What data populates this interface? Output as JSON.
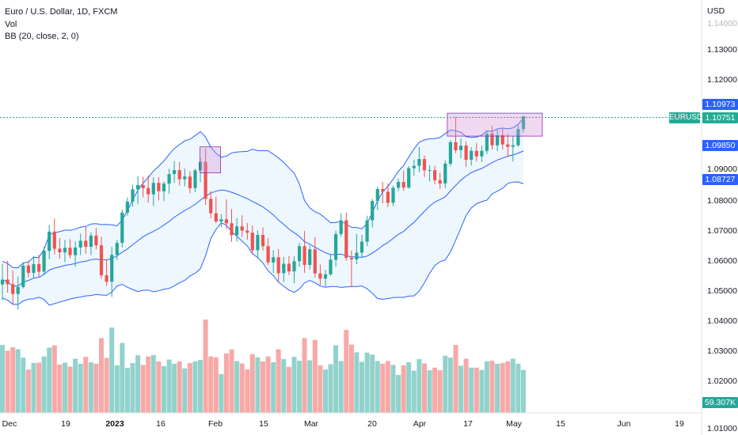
{
  "legend": {
    "line1": "Euro / U.S. Dollar, 1D, FXCM",
    "line2": "Vol",
    "line3": "BB (20, close, 2, 0)"
  },
  "price_axis": {
    "currency": "USD",
    "labels": [
      "1.14000",
      "1.13000",
      "1.12000",
      "1.09000",
      "1.08000",
      "1.07000",
      "1.06000",
      "1.05000",
      "1.04000",
      "1.03000",
      "1.02000",
      "1.01000"
    ]
  },
  "price_tags": {
    "bb_upper": "1.10973",
    "symbol": "EURUSD",
    "last_price": "1.10751",
    "bb_basis": "1.09850",
    "bb_lower": "1.08727",
    "volume": "59.307K"
  },
  "time_axis": {
    "labels": [
      "Dec",
      "19",
      "2023",
      "16",
      "Feb",
      "15",
      "Mar",
      "20",
      "Apr",
      "17",
      "May",
      "15",
      "Jun",
      "19"
    ]
  },
  "colors": {
    "up": "#26a69a",
    "down": "#ef5350",
    "bb_line": "#2962ff",
    "bb_fill": "#e3f2fd",
    "highlight": "#ce93d8"
  },
  "chart_data": {
    "type": "candlestick",
    "title": "Euro / U.S. Dollar, 1D, FXCM",
    "ylim": [
      1.005,
      1.145
    ],
    "candles": [
      [
        1.0525,
        1.0592,
        1.0473,
        1.0541
      ],
      [
        1.0541,
        1.0602,
        1.0498,
        1.0526
      ],
      [
        1.0526,
        1.0571,
        1.0458,
        1.0494
      ],
      [
        1.0494,
        1.0551,
        1.0443,
        1.0517
      ],
      [
        1.0517,
        1.0598,
        1.0512,
        1.0587
      ],
      [
        1.0587,
        1.0603,
        1.0548,
        1.0563
      ],
      [
        1.0563,
        1.0618,
        1.0546,
        1.0592
      ],
      [
        1.0592,
        1.0622,
        1.0549,
        1.0567
      ],
      [
        1.0567,
        1.0648,
        1.0559,
        1.0635
      ],
      [
        1.0635,
        1.072,
        1.0608,
        1.0698
      ],
      [
        1.0698,
        1.0741,
        1.0623,
        1.0642
      ],
      [
        1.0642,
        1.0677,
        1.0609,
        1.063
      ],
      [
        1.063,
        1.0671,
        1.0598,
        1.0645
      ],
      [
        1.0645,
        1.0673,
        1.061,
        1.0621
      ],
      [
        1.0621,
        1.0666,
        1.0583,
        1.0646
      ],
      [
        1.0646,
        1.0691,
        1.0621,
        1.0668
      ],
      [
        1.0668,
        1.0713,
        1.0625,
        1.0648
      ],
      [
        1.0648,
        1.0695,
        1.0621,
        1.0685
      ],
      [
        1.0685,
        1.071,
        1.064,
        1.0653
      ],
      [
        1.0653,
        1.0681,
        1.0544,
        1.0555
      ],
      [
        1.0555,
        1.0605,
        1.052,
        1.0534
      ],
      [
        1.0534,
        1.0648,
        1.0484,
        1.0622
      ],
      [
        1.0622,
        1.0671,
        1.0605,
        1.0661
      ],
      [
        1.0661,
        1.077,
        1.0646,
        1.076
      ],
      [
        1.076,
        1.0809,
        1.075,
        1.0796
      ],
      [
        1.0796,
        1.0851,
        1.0779,
        1.0836
      ],
      [
        1.0836,
        1.088,
        1.0788,
        1.085
      ],
      [
        1.085,
        1.0877,
        1.081,
        1.084
      ],
      [
        1.084,
        1.0881,
        1.0792,
        1.082
      ],
      [
        1.082,
        1.0875,
        1.0782,
        1.0857
      ],
      [
        1.0857,
        1.0876,
        1.08,
        1.083
      ],
      [
        1.083,
        1.0862,
        1.0798,
        1.0855
      ],
      [
        1.0855,
        1.0903,
        1.0822,
        1.0886
      ],
      [
        1.0886,
        1.0928,
        1.0858,
        1.0899
      ],
      [
        1.0899,
        1.0925,
        1.0849,
        1.0869
      ],
      [
        1.0869,
        1.0904,
        1.0846,
        1.0878
      ],
      [
        1.0878,
        1.0895,
        1.0823,
        1.084
      ],
      [
        1.084,
        1.0903,
        1.0827,
        1.0898
      ],
      [
        1.0898,
        1.094,
        1.086,
        1.0926
      ],
      [
        1.0926,
        1.097,
        1.0785,
        1.0805
      ],
      [
        1.0805,
        1.083,
        1.0741,
        1.0758
      ],
      [
        1.0758,
        1.0812,
        1.0725,
        1.0731
      ],
      [
        1.0731,
        1.0755,
        1.0712,
        1.0738
      ],
      [
        1.0738,
        1.0803,
        1.0706,
        1.0725
      ],
      [
        1.0725,
        1.0771,
        1.0664,
        1.0686
      ],
      [
        1.0686,
        1.0742,
        1.0665,
        1.0715
      ],
      [
        1.0715,
        1.0751,
        1.068,
        1.0701
      ],
      [
        1.0701,
        1.0726,
        1.0671,
        1.0694
      ],
      [
        1.0694,
        1.0718,
        1.0623,
        1.0637
      ],
      [
        1.0637,
        1.0702,
        1.0615,
        1.0687
      ],
      [
        1.0687,
        1.0712,
        1.0636,
        1.065
      ],
      [
        1.065,
        1.0677,
        1.0588,
        1.0597
      ],
      [
        1.0597,
        1.0637,
        1.0563,
        1.0614
      ],
      [
        1.0614,
        1.0641,
        1.0533,
        1.0562
      ],
      [
        1.0562,
        1.0615,
        1.0533,
        1.0593
      ],
      [
        1.0593,
        1.0618,
        1.0556,
        1.0568
      ],
      [
        1.0568,
        1.0617,
        1.0529,
        1.0601
      ],
      [
        1.0601,
        1.0661,
        1.0583,
        1.065
      ],
      [
        1.065,
        1.07,
        1.0563,
        1.0589
      ],
      [
        1.0589,
        1.0653,
        1.0574,
        1.064
      ],
      [
        1.064,
        1.068,
        1.0548,
        1.0561
      ],
      [
        1.0561,
        1.059,
        1.0524,
        1.0544
      ],
      [
        1.0544,
        1.0573,
        1.0518,
        1.0558
      ],
      [
        1.0558,
        1.0622,
        1.0553,
        1.0606
      ],
      [
        1.0606,
        1.0701,
        1.0583,
        1.069
      ],
      [
        1.069,
        1.0758,
        1.0681,
        1.0735
      ],
      [
        1.0735,
        1.076,
        1.0602,
        1.0612
      ],
      [
        1.0612,
        1.0636,
        1.0516,
        1.0607
      ],
      [
        1.0607,
        1.0691,
        1.0591,
        1.0629
      ],
      [
        1.0629,
        1.0687,
        1.0612,
        1.0665
      ],
      [
        1.0665,
        1.075,
        1.0651,
        1.0735
      ],
      [
        1.0735,
        1.0805,
        1.0711,
        1.0798
      ],
      [
        1.0798,
        1.0845,
        1.0768,
        1.0837
      ],
      [
        1.0837,
        1.086,
        1.079,
        1.0828
      ],
      [
        1.0828,
        1.0855,
        1.0778,
        1.0792
      ],
      [
        1.0792,
        1.0848,
        1.0781,
        1.0841
      ],
      [
        1.0841,
        1.0871,
        1.083,
        1.086
      ],
      [
        1.086,
        1.0897,
        1.0831,
        1.0842
      ],
      [
        1.0842,
        1.0912,
        1.0838,
        1.0905
      ],
      [
        1.0905,
        1.0933,
        1.0881,
        1.0913
      ],
      [
        1.0913,
        1.0974,
        1.0892,
        1.0935
      ],
      [
        1.0935,
        1.0947,
        1.0876,
        1.0898
      ],
      [
        1.0898,
        1.0915,
        1.0862,
        1.0899
      ],
      [
        1.0899,
        1.0913,
        1.0853,
        1.0866
      ],
      [
        1.0866,
        1.089,
        1.0837,
        1.0855
      ],
      [
        1.0855,
        1.0931,
        1.084,
        1.092
      ],
      [
        1.092,
        1.0997,
        1.0911,
        1.099
      ],
      [
        1.099,
        1.1073,
        1.0954,
        1.0964
      ],
      [
        1.0964,
        1.1003,
        1.0938,
        1.0979
      ],
      [
        1.0979,
        1.0993,
        1.091,
        1.0933
      ],
      [
        1.0933,
        1.0974,
        1.0914,
        1.0962
      ],
      [
        1.0962,
        1.0988,
        1.0928,
        1.0944
      ],
      [
        1.0944,
        1.0979,
        1.0925,
        1.0962
      ],
      [
        1.0962,
        1.1027,
        1.0951,
        1.1018
      ],
      [
        1.1018,
        1.1044,
        1.0966,
        1.098
      ],
      [
        1.098,
        1.1031,
        1.0961,
        1.1013
      ],
      [
        1.1013,
        1.1038,
        1.0966,
        1.0983
      ],
      [
        1.0983,
        1.1018,
        1.0942,
        1.0975
      ],
      [
        1.0975,
        1.101,
        1.0927,
        1.098
      ],
      [
        1.098,
        1.1045,
        1.0975,
        1.1033
      ],
      [
        1.1033,
        1.1076,
        1.1022,
        1.1075
      ]
    ],
    "volume_unit": "K",
    "last_volume": 59.307
  }
}
